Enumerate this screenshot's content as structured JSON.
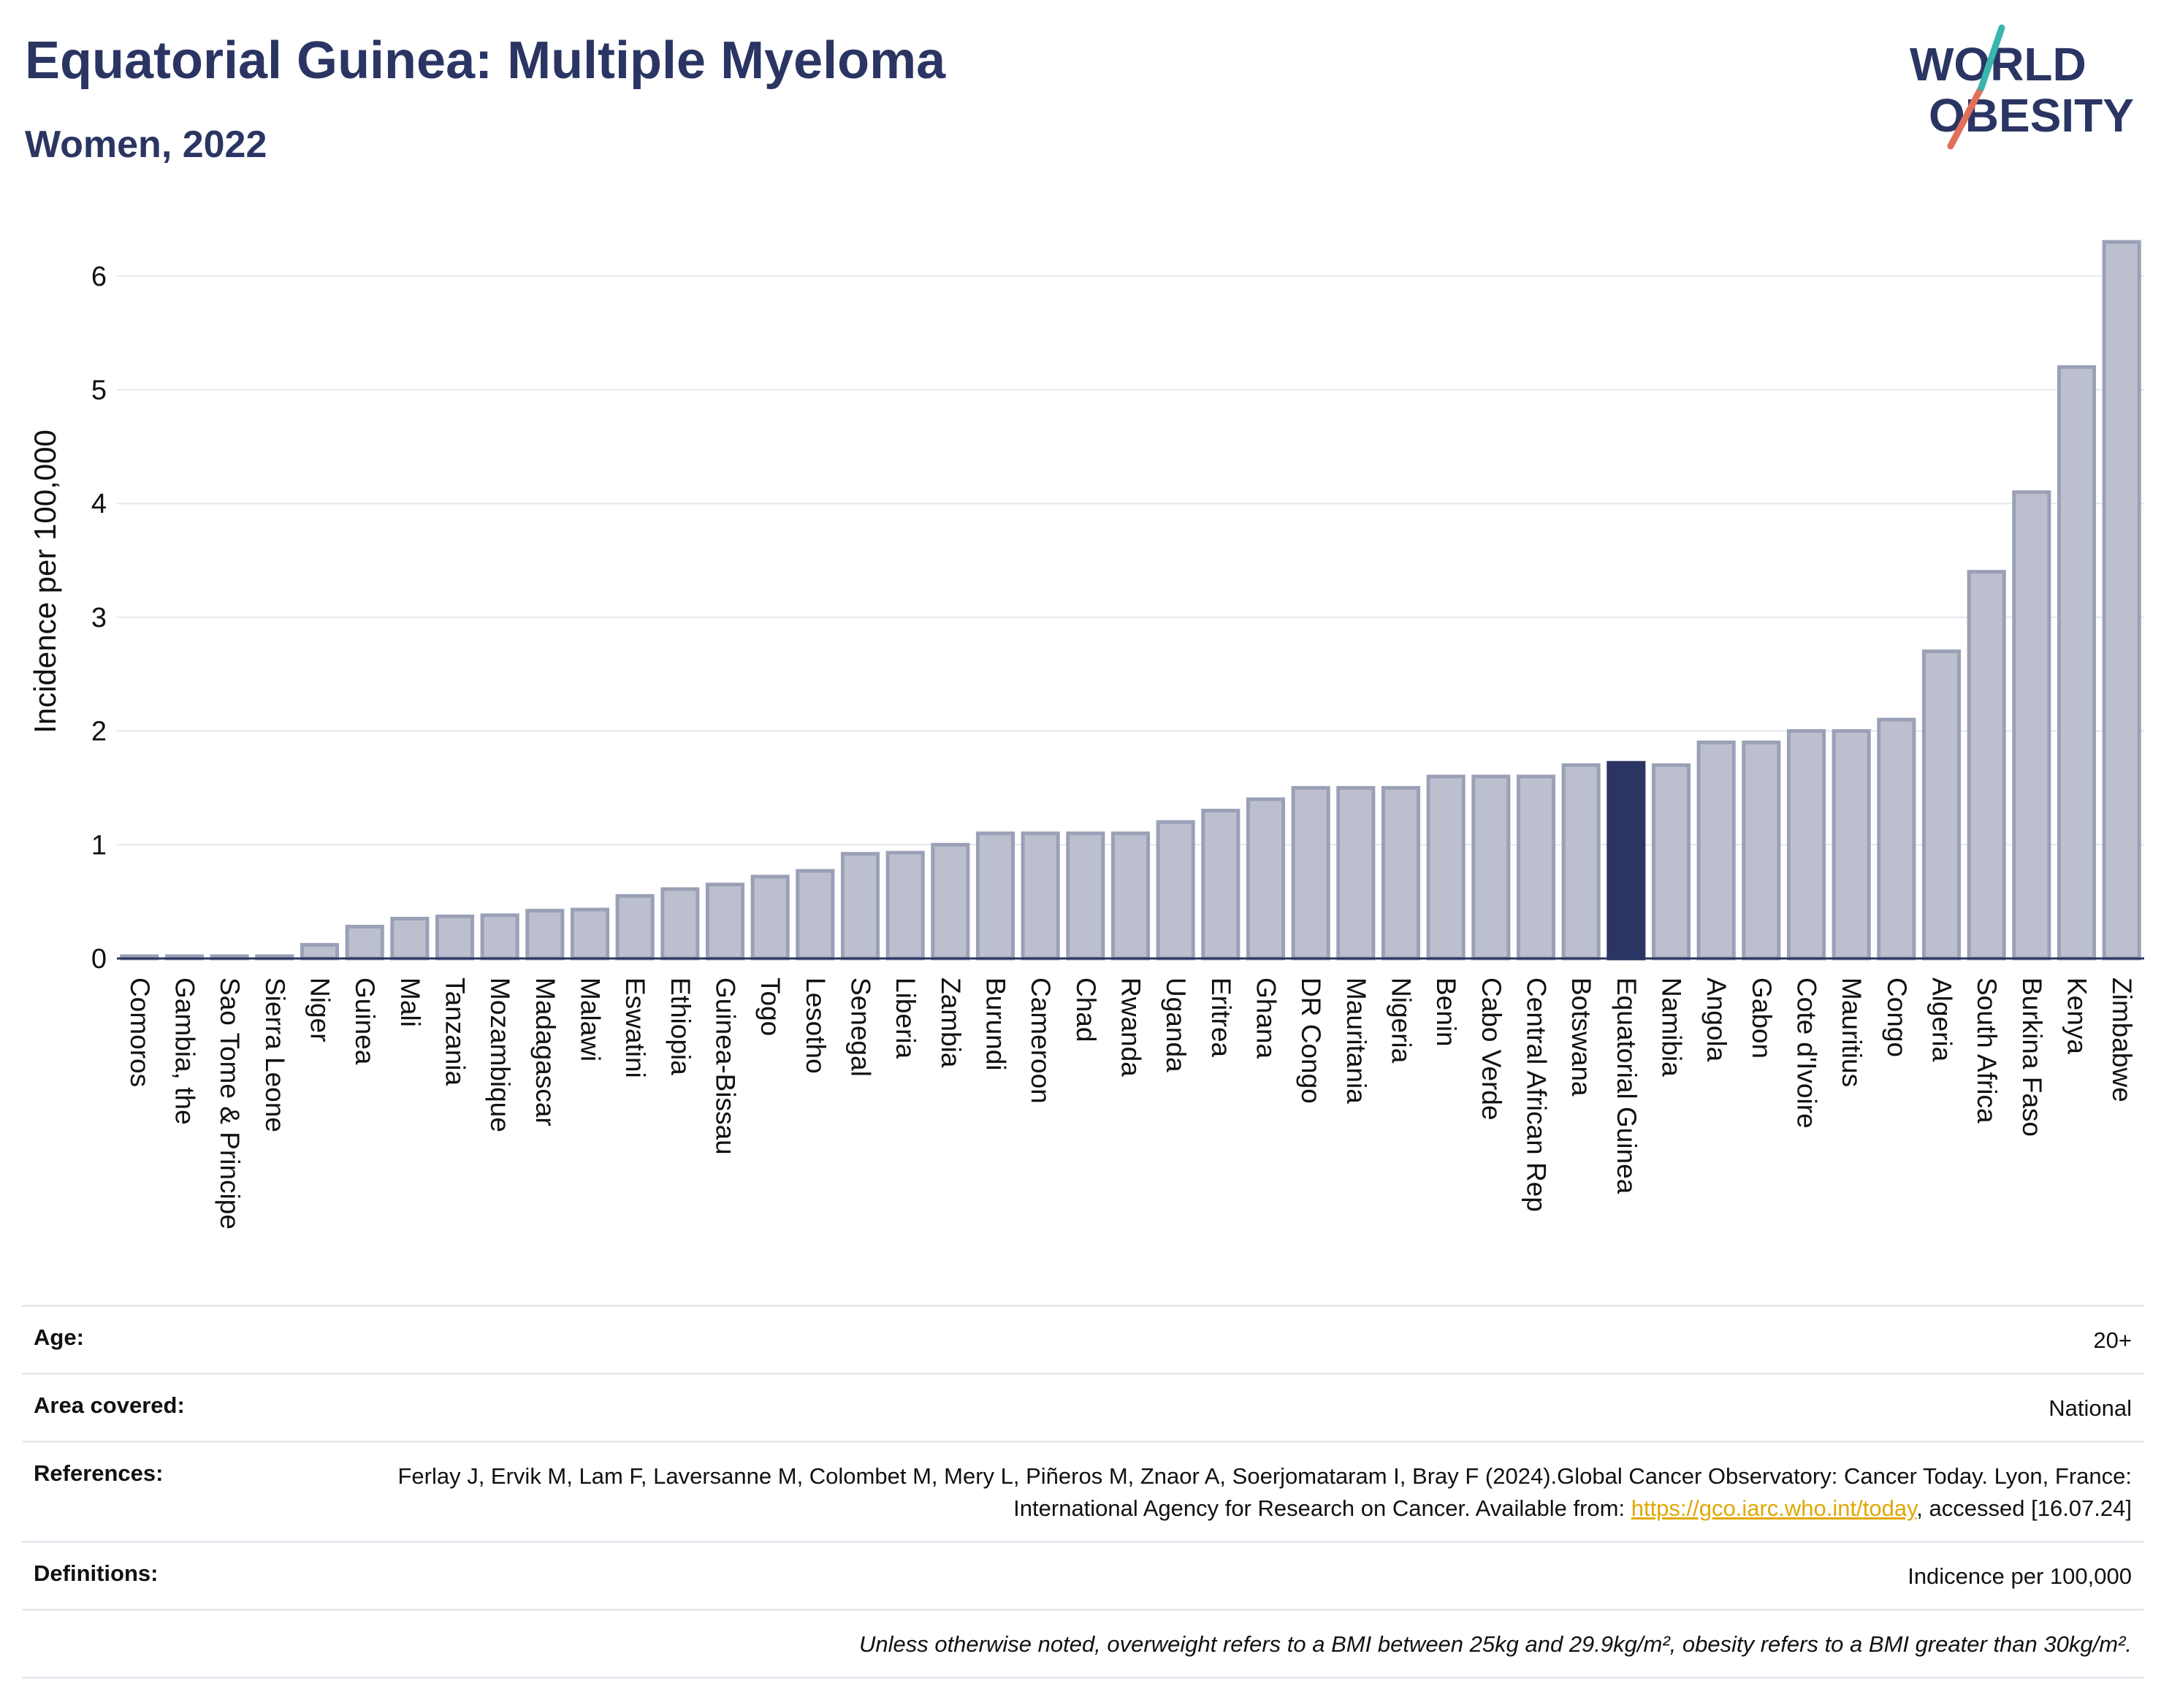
{
  "header": {
    "title": "Equatorial Guinea: Multiple Myeloma",
    "subtitle": "Women, 2022"
  },
  "logo": {
    "line1": "WORLD",
    "line2": "OBESITY"
  },
  "colors": {
    "bar": "#bcc0ce",
    "bar_border": "#9aa0b6",
    "highlight": "#2b3563",
    "grid": "#e5e7ee"
  },
  "chart_data": {
    "type": "bar",
    "ylabel": "Incidence per 100,000",
    "ylim": [
      0,
      6.5
    ],
    "yticks": [
      0,
      1,
      2,
      3,
      4,
      5,
      6
    ],
    "grid": true,
    "highlight": "Equatorial Guinea",
    "categories": [
      "Comoros",
      "Gambia, the",
      "Sao Tome & Principe",
      "Sierra Leone",
      "Niger",
      "Guinea",
      "Mali",
      "Tanzania",
      "Mozambique",
      "Madagascar",
      "Malawi",
      "Eswatini",
      "Ethiopia",
      "Guinea-Bissau",
      "Togo",
      "Lesotho",
      "Senegal",
      "Liberia",
      "Zambia",
      "Burundi",
      "Cameroon",
      "Chad",
      "Rwanda",
      "Uganda",
      "Eritrea",
      "Ghana",
      "DR Congo",
      "Mauritania",
      "Nigeria",
      "Benin",
      "Cabo Verde",
      "Central African Rep",
      "Botswana",
      "Equatorial Guinea",
      "Namibia",
      "Angola",
      "Gabon",
      "Cote d'Ivoire",
      "Mauritius",
      "Congo",
      "Algeria",
      "South Africa",
      "Burkina Faso",
      "Kenya",
      "Zimbabwe"
    ],
    "values": [
      0.02,
      0.02,
      0.02,
      0.02,
      0.12,
      0.28,
      0.35,
      0.37,
      0.38,
      0.42,
      0.43,
      0.55,
      0.61,
      0.65,
      0.72,
      0.77,
      0.92,
      0.93,
      1.0,
      1.1,
      1.1,
      1.1,
      1.1,
      1.2,
      1.3,
      1.4,
      1.5,
      1.5,
      1.5,
      1.6,
      1.6,
      1.6,
      1.7,
      1.72,
      1.7,
      1.9,
      1.9,
      2.0,
      2.0,
      2.1,
      2.7,
      3.4,
      4.1,
      5.2,
      6.3
    ]
  },
  "meta": {
    "age_label": "Age:",
    "age_value": "20+",
    "area_label": "Area covered:",
    "area_value": "National",
    "references_label": "References:",
    "references_text": "Ferlay J, Ervik M, Lam F, Laversanne M, Colombet M, Mery L, Piñeros M, Znaor A, Soerjomataram I, Bray F (2024).Global Cancer Observatory: Cancer Today. Lyon, France: International Agency for Research on Cancer. Available from:",
    "references_link": "https://gco.iarc.who.int/today",
    "references_tail": ", accessed [16.07.24]",
    "definitions_label": "Definitions:",
    "definitions_value": "Indicence per 100,000",
    "note": "Unless otherwise noted, overweight refers to a BMI between 25kg and 29.9kg/m², obesity refers to a BMI greater than 30kg/m²."
  }
}
